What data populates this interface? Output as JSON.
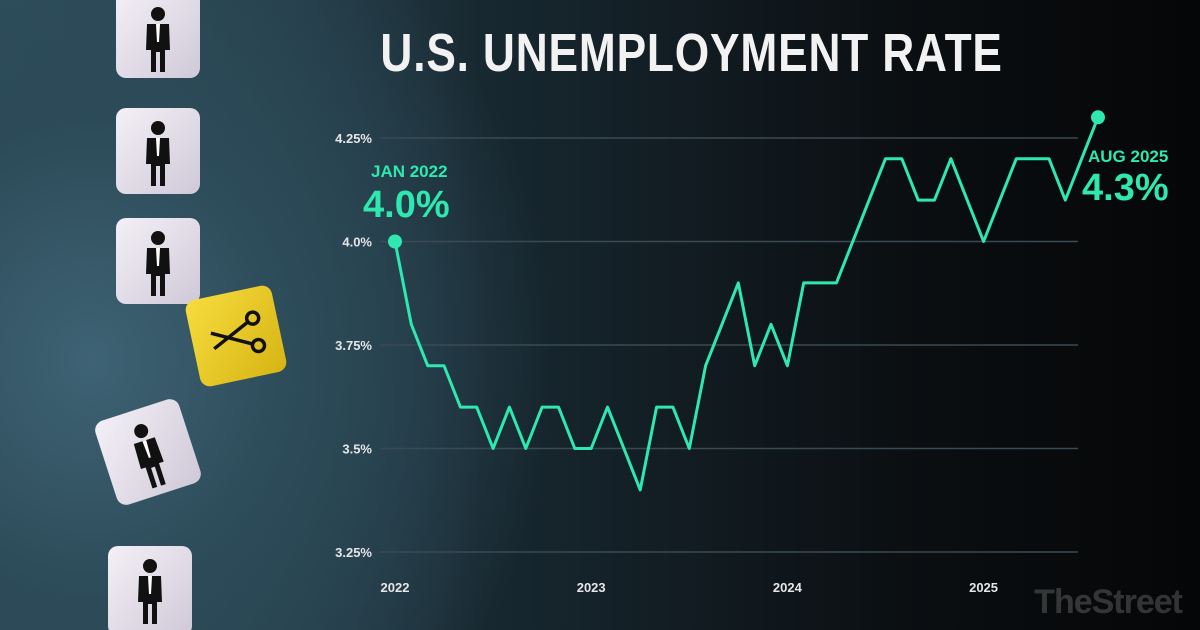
{
  "title": "U.S. UNEMPLOYMENT RATE",
  "brand": "TheStreet",
  "annotations": {
    "start": {
      "label": "JAN 2022",
      "value": "4.0%"
    },
    "end": {
      "label": "AUG 2025",
      "value": "4.3%"
    }
  },
  "colors": {
    "line": "#2ee8b0",
    "grid": "#3a4a52",
    "tick": "#e6e6e6"
  },
  "chart_data": {
    "type": "line",
    "title": "U.S. UNEMPLOYMENT RATE",
    "xlabel": "",
    "ylabel": "",
    "ylim": [
      3.25,
      4.3
    ],
    "xlim": [
      "2022-01",
      "2025-08"
    ],
    "grid": true,
    "y_ticks": [
      {
        "value": 4.25,
        "label": "4.25%"
      },
      {
        "value": 4.0,
        "label": "4.0%"
      },
      {
        "value": 3.75,
        "label": "3.75%"
      },
      {
        "value": 3.5,
        "label": "3.5%"
      },
      {
        "value": 3.25,
        "label": "3.25%"
      }
    ],
    "x_ticks": [
      {
        "month": "2022-01",
        "label": "2022"
      },
      {
        "month": "2023-01",
        "label": "2023"
      },
      {
        "month": "2024-01",
        "label": "2024"
      },
      {
        "month": "2025-01",
        "label": "2025"
      }
    ],
    "series": [
      {
        "x": [
          "2022-01",
          "2022-02",
          "2022-03",
          "2022-04",
          "2022-05",
          "2022-06",
          "2022-07",
          "2022-08",
          "2022-09",
          "2022-10",
          "2022-11",
          "2022-12",
          "2023-01",
          "2023-02",
          "2023-03",
          "2023-04",
          "2023-05",
          "2023-06",
          "2023-07",
          "2023-08",
          "2023-09",
          "2023-10",
          "2023-11",
          "2023-12",
          "2024-01",
          "2024-02",
          "2024-03",
          "2024-04",
          "2024-05",
          "2024-06",
          "2024-07",
          "2024-08",
          "2024-09",
          "2024-10",
          "2024-11",
          "2024-12",
          "2025-01",
          "2025-02",
          "2025-03",
          "2025-04",
          "2025-05",
          "2025-06",
          "2025-07",
          "2025-08"
        ],
        "values": [
          4.0,
          3.8,
          3.7,
          3.7,
          3.6,
          3.6,
          3.5,
          3.6,
          3.5,
          3.6,
          3.6,
          3.5,
          3.5,
          3.6,
          3.5,
          3.4,
          3.6,
          3.6,
          3.5,
          3.7,
          3.8,
          3.9,
          3.7,
          3.8,
          3.7,
          3.9,
          3.9,
          3.9,
          4.0,
          4.1,
          4.2,
          4.2,
          4.1,
          4.1,
          4.2,
          4.1,
          4.0,
          4.1,
          4.2,
          4.2,
          4.2,
          4.1,
          4.2,
          4.3
        ]
      }
    ]
  }
}
